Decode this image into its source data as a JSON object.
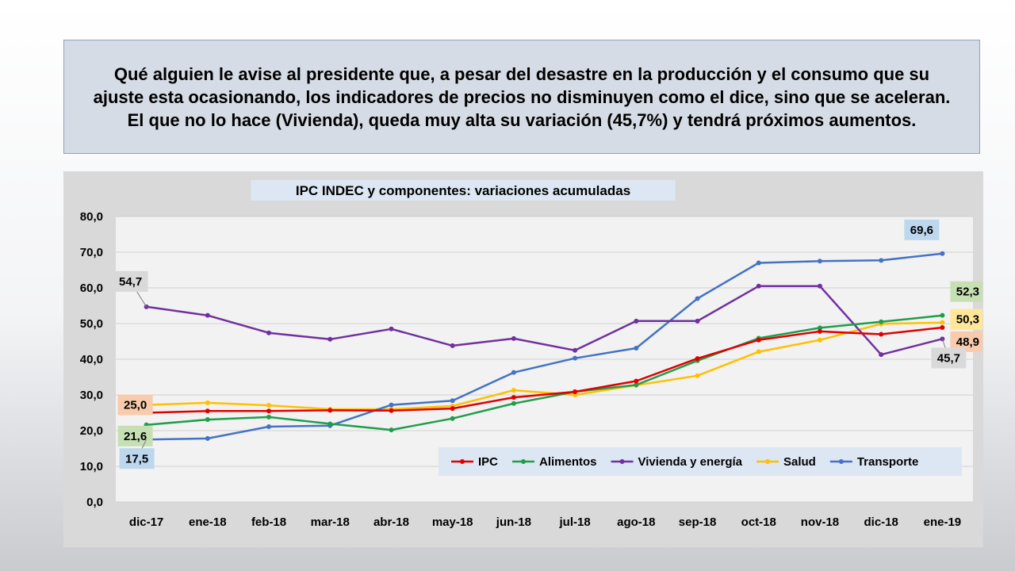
{
  "headline": {
    "text": "Qué alguien le avise al presidente que, a pesar del desastre en la producción y el consumo que su ajuste esta ocasionando, los indicadores de precios no disminuyen como el dice, sino que se aceleran. El que no lo hace (Vivienda), queda muy alta su variación (45,7%) y tendrá próximos aumentos."
  },
  "chart_data": {
    "type": "line",
    "title": "IPC INDEC y componentes: variaciones acumuladas",
    "xlabel": "",
    "ylabel": "",
    "categories": [
      "dic-17",
      "ene-18",
      "feb-18",
      "mar-18",
      "abr-18",
      "may-18",
      "jun-18",
      "jul-18",
      "ago-18",
      "sep-18",
      "oct-18",
      "nov-18",
      "dic-18",
      "ene-19"
    ],
    "ylim": [
      0,
      80
    ],
    "yticks": [
      "0,0",
      "10,0",
      "20,0",
      "30,0",
      "40,0",
      "50,0",
      "60,0",
      "70,0",
      "80,0"
    ],
    "grid": true,
    "legend_position": "bottom-right",
    "series": [
      {
        "name": "IPC",
        "color": "#e00000",
        "values": [
          25.0,
          25.5,
          25.5,
          25.7,
          25.6,
          26.2,
          29.3,
          30.9,
          33.9,
          40.2,
          45.4,
          47.8,
          47.0,
          48.9
        ]
      },
      {
        "name": "Alimentos",
        "color": "#1f9e4a",
        "values": [
          21.6,
          23.1,
          23.8,
          21.9,
          20.2,
          23.4,
          27.6,
          30.9,
          32.8,
          39.6,
          45.9,
          48.8,
          50.5,
          52.3
        ]
      },
      {
        "name": "Vivienda y energía",
        "color": "#7030a0",
        "values": [
          54.7,
          52.3,
          47.4,
          45.6,
          48.5,
          43.8,
          45.8,
          42.5,
          50.7,
          50.7,
          60.5,
          60.5,
          41.3,
          45.7
        ]
      },
      {
        "name": "Salud",
        "color": "#ffc000",
        "values": [
          27.2,
          27.8,
          27.1,
          26.0,
          26.0,
          26.9,
          31.3,
          30.0,
          32.7,
          35.4,
          42.1,
          45.4,
          49.9,
          50.3
        ]
      },
      {
        "name": "Transporte",
        "color": "#4472c4",
        "values": [
          17.5,
          17.8,
          21.1,
          21.4,
          27.2,
          28.4,
          36.3,
          40.3,
          43.1,
          57.0,
          67.0,
          67.5,
          67.7,
          69.6
        ]
      }
    ],
    "annotations": [
      {
        "text": "54,7",
        "series": "Vivienda y energía",
        "index": 0,
        "bg": "#d9d9d9"
      },
      {
        "text": "25,0",
        "series": "IPC",
        "index": 0,
        "bg": "#f8cbad"
      },
      {
        "text": "21,6",
        "series": "Alimentos",
        "index": 0,
        "bg": "#c6e0b4"
      },
      {
        "text": "17,5",
        "series": "Transporte",
        "index": 0,
        "bg": "#bdd7ee"
      },
      {
        "text": "69,6",
        "series": "Transporte",
        "index": 13,
        "bg": "#bdd7ee"
      },
      {
        "text": "52,3",
        "series": "Alimentos",
        "index": 13,
        "bg": "#c6e0b4"
      },
      {
        "text": "50,3",
        "series": "Salud",
        "index": 13,
        "bg": "#ffe699"
      },
      {
        "text": "48,9",
        "series": "IPC",
        "index": 13,
        "bg": "#f8cbad"
      },
      {
        "text": "45,7",
        "series": "Vivienda y energía",
        "index": 13,
        "bg": "#d9d9d9"
      }
    ]
  }
}
